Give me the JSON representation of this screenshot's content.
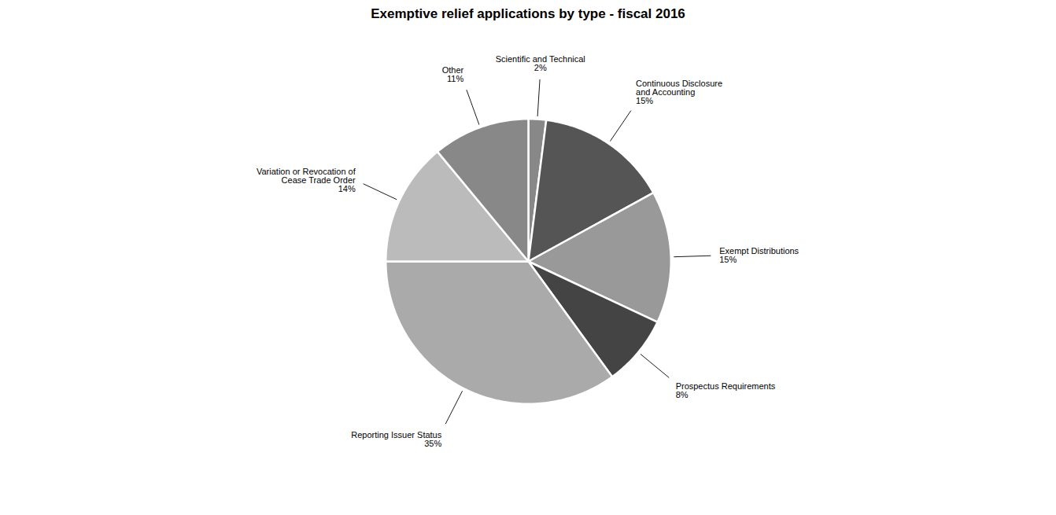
{
  "chart_data": {
    "type": "pie",
    "title": "Exemptive relief applications by type - fiscal 2016",
    "categories": [
      "Scientific and Technical",
      "Continuous Disclosure\nand Accounting",
      "Exempt Distributions",
      "Prospectus Requirements",
      "Reporting Issuer Status",
      "Variation or Revocation of\nCease Trade Order",
      "Other"
    ],
    "values": [
      2,
      15,
      15,
      8,
      35,
      14,
      11
    ],
    "value_labels": [
      "2%",
      "15%",
      "15%",
      "8%",
      "35%",
      "14%",
      "11%"
    ],
    "colors": [
      "#888888",
      "#555555",
      "#999999",
      "#444444",
      "#aaaaaa",
      "#bbbbbb",
      "#888888"
    ],
    "data_labels": true
  }
}
